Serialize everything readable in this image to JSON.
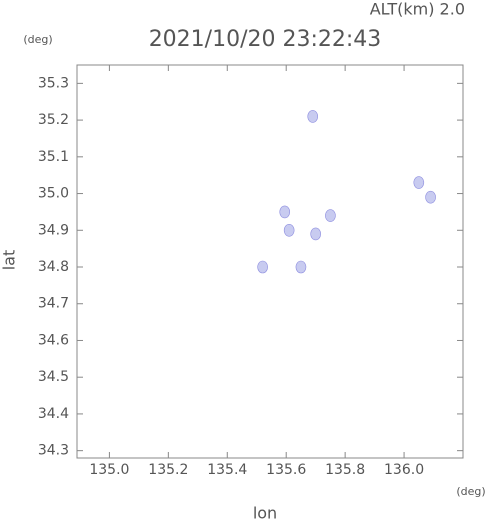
{
  "chart_data": {
    "type": "scatter",
    "title": "2021/10/20 23:22:43",
    "annotation": "ALT(km) 2.0",
    "x_label": "lon",
    "y_label": "lat",
    "x_unit": "(deg)",
    "y_unit": "(deg)",
    "xlim": [
      134.89,
      136.2
    ],
    "ylim": [
      34.28,
      35.35
    ],
    "xticks": [
      {
        "value": 135,
        "label": "135.0"
      },
      135.2,
      135.4,
      135.6,
      135.8,
      {
        "value": 136,
        "label": "136.0"
      }
    ],
    "yticks": [
      34.3,
      34.4,
      34.5,
      34.6,
      34.7,
      34.8,
      34.9,
      {
        "value": 35,
        "label": "35.0"
      },
      35.1,
      35.2,
      35.3
    ],
    "color": "#c8cbf0",
    "x": [
      135.69,
      135.595,
      135.61,
      135.7,
      135.52,
      135.65,
      136.05,
      136.09,
      135.75
    ],
    "y": [
      35.21,
      34.95,
      34.9,
      34.89,
      34.8,
      34.8,
      35.03,
      34.99,
      34.94
    ]
  }
}
